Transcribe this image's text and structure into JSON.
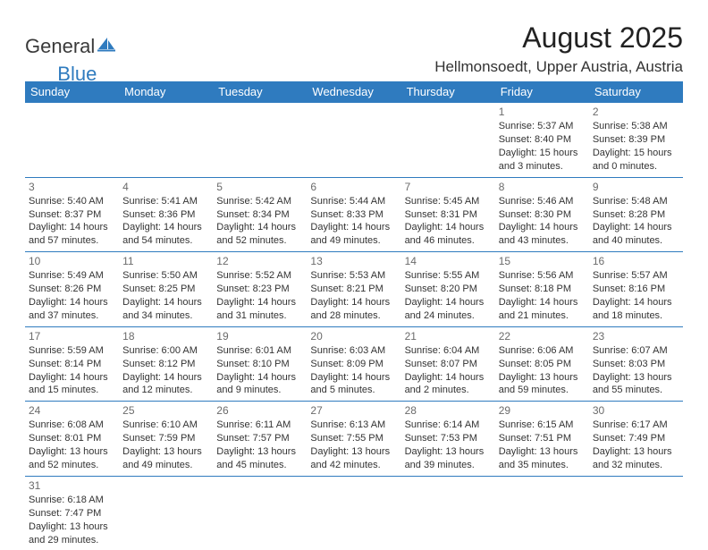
{
  "logo": {
    "general": "General",
    "blue": "Blue"
  },
  "title": "August 2025",
  "subtitle": "Hellmonsoedt, Upper Austria, Austria",
  "calendar": {
    "header_bg": "#2f7bbf",
    "header_fg": "#ffffff",
    "border_color": "#2f7bbf",
    "daynum_color": "#6b6b6b",
    "font_size_cell": 11,
    "font_size_header": 13,
    "columns": [
      "Sunday",
      "Monday",
      "Tuesday",
      "Wednesday",
      "Thursday",
      "Friday",
      "Saturday"
    ],
    "weeks": [
      [
        null,
        null,
        null,
        null,
        null,
        {
          "d": "1",
          "sr": "Sunrise: 5:37 AM",
          "ss": "Sunset: 8:40 PM",
          "dl1": "Daylight: 15 hours",
          "dl2": "and 3 minutes."
        },
        {
          "d": "2",
          "sr": "Sunrise: 5:38 AM",
          "ss": "Sunset: 8:39 PM",
          "dl1": "Daylight: 15 hours",
          "dl2": "and 0 minutes."
        }
      ],
      [
        {
          "d": "3",
          "sr": "Sunrise: 5:40 AM",
          "ss": "Sunset: 8:37 PM",
          "dl1": "Daylight: 14 hours",
          "dl2": "and 57 minutes."
        },
        {
          "d": "4",
          "sr": "Sunrise: 5:41 AM",
          "ss": "Sunset: 8:36 PM",
          "dl1": "Daylight: 14 hours",
          "dl2": "and 54 minutes."
        },
        {
          "d": "5",
          "sr": "Sunrise: 5:42 AM",
          "ss": "Sunset: 8:34 PM",
          "dl1": "Daylight: 14 hours",
          "dl2": "and 52 minutes."
        },
        {
          "d": "6",
          "sr": "Sunrise: 5:44 AM",
          "ss": "Sunset: 8:33 PM",
          "dl1": "Daylight: 14 hours",
          "dl2": "and 49 minutes."
        },
        {
          "d": "7",
          "sr": "Sunrise: 5:45 AM",
          "ss": "Sunset: 8:31 PM",
          "dl1": "Daylight: 14 hours",
          "dl2": "and 46 minutes."
        },
        {
          "d": "8",
          "sr": "Sunrise: 5:46 AM",
          "ss": "Sunset: 8:30 PM",
          "dl1": "Daylight: 14 hours",
          "dl2": "and 43 minutes."
        },
        {
          "d": "9",
          "sr": "Sunrise: 5:48 AM",
          "ss": "Sunset: 8:28 PM",
          "dl1": "Daylight: 14 hours",
          "dl2": "and 40 minutes."
        }
      ],
      [
        {
          "d": "10",
          "sr": "Sunrise: 5:49 AM",
          "ss": "Sunset: 8:26 PM",
          "dl1": "Daylight: 14 hours",
          "dl2": "and 37 minutes."
        },
        {
          "d": "11",
          "sr": "Sunrise: 5:50 AM",
          "ss": "Sunset: 8:25 PM",
          "dl1": "Daylight: 14 hours",
          "dl2": "and 34 minutes."
        },
        {
          "d": "12",
          "sr": "Sunrise: 5:52 AM",
          "ss": "Sunset: 8:23 PM",
          "dl1": "Daylight: 14 hours",
          "dl2": "and 31 minutes."
        },
        {
          "d": "13",
          "sr": "Sunrise: 5:53 AM",
          "ss": "Sunset: 8:21 PM",
          "dl1": "Daylight: 14 hours",
          "dl2": "and 28 minutes."
        },
        {
          "d": "14",
          "sr": "Sunrise: 5:55 AM",
          "ss": "Sunset: 8:20 PM",
          "dl1": "Daylight: 14 hours",
          "dl2": "and 24 minutes."
        },
        {
          "d": "15",
          "sr": "Sunrise: 5:56 AM",
          "ss": "Sunset: 8:18 PM",
          "dl1": "Daylight: 14 hours",
          "dl2": "and 21 minutes."
        },
        {
          "d": "16",
          "sr": "Sunrise: 5:57 AM",
          "ss": "Sunset: 8:16 PM",
          "dl1": "Daylight: 14 hours",
          "dl2": "and 18 minutes."
        }
      ],
      [
        {
          "d": "17",
          "sr": "Sunrise: 5:59 AM",
          "ss": "Sunset: 8:14 PM",
          "dl1": "Daylight: 14 hours",
          "dl2": "and 15 minutes."
        },
        {
          "d": "18",
          "sr": "Sunrise: 6:00 AM",
          "ss": "Sunset: 8:12 PM",
          "dl1": "Daylight: 14 hours",
          "dl2": "and 12 minutes."
        },
        {
          "d": "19",
          "sr": "Sunrise: 6:01 AM",
          "ss": "Sunset: 8:10 PM",
          "dl1": "Daylight: 14 hours",
          "dl2": "and 9 minutes."
        },
        {
          "d": "20",
          "sr": "Sunrise: 6:03 AM",
          "ss": "Sunset: 8:09 PM",
          "dl1": "Daylight: 14 hours",
          "dl2": "and 5 minutes."
        },
        {
          "d": "21",
          "sr": "Sunrise: 6:04 AM",
          "ss": "Sunset: 8:07 PM",
          "dl1": "Daylight: 14 hours",
          "dl2": "and 2 minutes."
        },
        {
          "d": "22",
          "sr": "Sunrise: 6:06 AM",
          "ss": "Sunset: 8:05 PM",
          "dl1": "Daylight: 13 hours",
          "dl2": "and 59 minutes."
        },
        {
          "d": "23",
          "sr": "Sunrise: 6:07 AM",
          "ss": "Sunset: 8:03 PM",
          "dl1": "Daylight: 13 hours",
          "dl2": "and 55 minutes."
        }
      ],
      [
        {
          "d": "24",
          "sr": "Sunrise: 6:08 AM",
          "ss": "Sunset: 8:01 PM",
          "dl1": "Daylight: 13 hours",
          "dl2": "and 52 minutes."
        },
        {
          "d": "25",
          "sr": "Sunrise: 6:10 AM",
          "ss": "Sunset: 7:59 PM",
          "dl1": "Daylight: 13 hours",
          "dl2": "and 49 minutes."
        },
        {
          "d": "26",
          "sr": "Sunrise: 6:11 AM",
          "ss": "Sunset: 7:57 PM",
          "dl1": "Daylight: 13 hours",
          "dl2": "and 45 minutes."
        },
        {
          "d": "27",
          "sr": "Sunrise: 6:13 AM",
          "ss": "Sunset: 7:55 PM",
          "dl1": "Daylight: 13 hours",
          "dl2": "and 42 minutes."
        },
        {
          "d": "28",
          "sr": "Sunrise: 6:14 AM",
          "ss": "Sunset: 7:53 PM",
          "dl1": "Daylight: 13 hours",
          "dl2": "and 39 minutes."
        },
        {
          "d": "29",
          "sr": "Sunrise: 6:15 AM",
          "ss": "Sunset: 7:51 PM",
          "dl1": "Daylight: 13 hours",
          "dl2": "and 35 minutes."
        },
        {
          "d": "30",
          "sr": "Sunrise: 6:17 AM",
          "ss": "Sunset: 7:49 PM",
          "dl1": "Daylight: 13 hours",
          "dl2": "and 32 minutes."
        }
      ],
      [
        {
          "d": "31",
          "sr": "Sunrise: 6:18 AM",
          "ss": "Sunset: 7:47 PM",
          "dl1": "Daylight: 13 hours",
          "dl2": "and 29 minutes."
        },
        null,
        null,
        null,
        null,
        null,
        null
      ]
    ]
  }
}
